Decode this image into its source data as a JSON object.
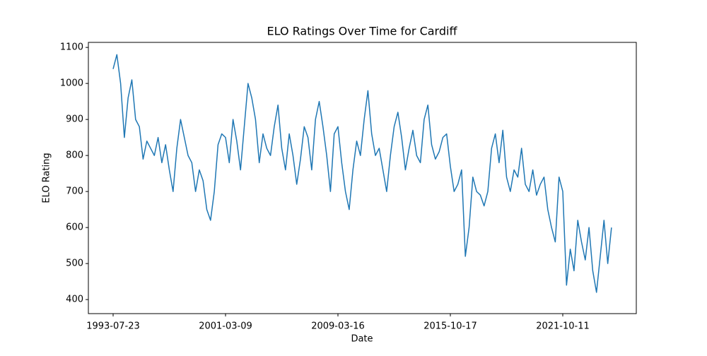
{
  "chart_data": {
    "type": "line",
    "title": "ELO Ratings Over Time for Cardiff",
    "x_label": "Date",
    "y_label": "ELO Rating",
    "categories": [
      "1993-07-23",
      null,
      null,
      null,
      null,
      null,
      null,
      null,
      null,
      null,
      null,
      null,
      null,
      null,
      null,
      null,
      null,
      null,
      null,
      null,
      null,
      null,
      null,
      null,
      null,
      null,
      null,
      null,
      null,
      null,
      "2001-03-09",
      null,
      null,
      null,
      null,
      null,
      null,
      null,
      null,
      null,
      null,
      null,
      null,
      null,
      null,
      null,
      null,
      null,
      null,
      null,
      null,
      null,
      null,
      null,
      null,
      null,
      null,
      null,
      null,
      null,
      "2009-03-16",
      null,
      null,
      null,
      null,
      null,
      null,
      null,
      null,
      null,
      null,
      null,
      null,
      null,
      null,
      null,
      null,
      null,
      null,
      null,
      null,
      null,
      null,
      null,
      null,
      null,
      null,
      null,
      null,
      null,
      "2015-10-17",
      null,
      null,
      null,
      null,
      null,
      null,
      null,
      null,
      null,
      null,
      null,
      null,
      null,
      null,
      null,
      null,
      null,
      null,
      null,
      null,
      null,
      null,
      null,
      null,
      null,
      null,
      null,
      null,
      null,
      "2021-10-11",
      null,
      null,
      null,
      null,
      null,
      null,
      null,
      null,
      null,
      null,
      null,
      null,
      null
    ],
    "series": [
      {
        "name": "Cardiff",
        "color": "#1f77b4",
        "values": [
          1040,
          1080,
          1000,
          850,
          960,
          1010,
          900,
          880,
          790,
          840,
          820,
          800,
          850,
          780,
          830,
          760,
          700,
          820,
          900,
          850,
          800,
          780,
          700,
          760,
          730,
          650,
          620,
          700,
          830,
          860,
          850,
          780,
          900,
          840,
          760,
          880,
          1000,
          960,
          900,
          780,
          860,
          820,
          800,
          880,
          940,
          820,
          760,
          860,
          800,
          720,
          790,
          880,
          850,
          760,
          900,
          950,
          880,
          800,
          700,
          860,
          880,
          780,
          700,
          650,
          760,
          840,
          800,
          900,
          980,
          860,
          800,
          820,
          760,
          700,
          800,
          880,
          920,
          850,
          760,
          820,
          870,
          800,
          780,
          900,
          940,
          830,
          790,
          810,
          850,
          860,
          770,
          700,
          720,
          760,
          520,
          600,
          740,
          700,
          690,
          660,
          700,
          820,
          860,
          780,
          870,
          740,
          700,
          760,
          740,
          820,
          720,
          700,
          760,
          690,
          720,
          740,
          650,
          600,
          560,
          740,
          700,
          440,
          540,
          480,
          620,
          560,
          510,
          600,
          480,
          420,
          520,
          620,
          500,
          600
        ]
      }
    ],
    "ylim": [
      361,
      1114
    ],
    "yticks": [
      400,
      500,
      600,
      700,
      800,
      900,
      1000,
      1100
    ]
  }
}
